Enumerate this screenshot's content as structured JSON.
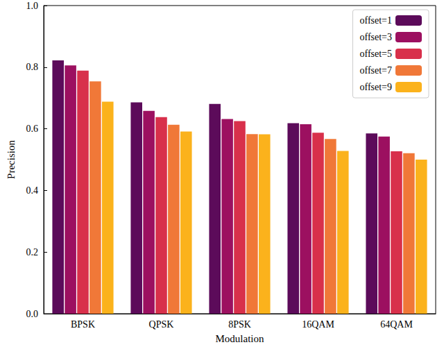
{
  "chart_data": {
    "type": "bar",
    "x_label": "Modulation",
    "y_label": "Precision",
    "categories": [
      "BPSK",
      "QPSK",
      "8PSK",
      "16QAM",
      "64QAM"
    ],
    "series": [
      {
        "name": "offset=1",
        "color": "#5c0b5a",
        "values": [
          0.822,
          0.686,
          0.681,
          0.618,
          0.585
        ]
      },
      {
        "name": "offset=3",
        "color": "#9c1060",
        "values": [
          0.806,
          0.658,
          0.632,
          0.615,
          0.575
        ]
      },
      {
        "name": "offset=5",
        "color": "#d8304b",
        "values": [
          0.789,
          0.638,
          0.625,
          0.587,
          0.527
        ]
      },
      {
        "name": "offset=7",
        "color": "#f07838",
        "values": [
          0.754,
          0.613,
          0.583,
          0.567,
          0.521
        ]
      },
      {
        "name": "offset=9",
        "color": "#fbb21c",
        "values": [
          0.688,
          0.591,
          0.582,
          0.528,
          0.5
        ]
      }
    ],
    "ylim": [
      0,
      1
    ],
    "yticks": [
      {
        "value": 0,
        "label": "0.0"
      },
      0.2,
      0.4,
      0.6,
      0.8,
      {
        "value": 1,
        "label": "1.0"
      }
    ],
    "grid": false,
    "legend": "upper right"
  }
}
